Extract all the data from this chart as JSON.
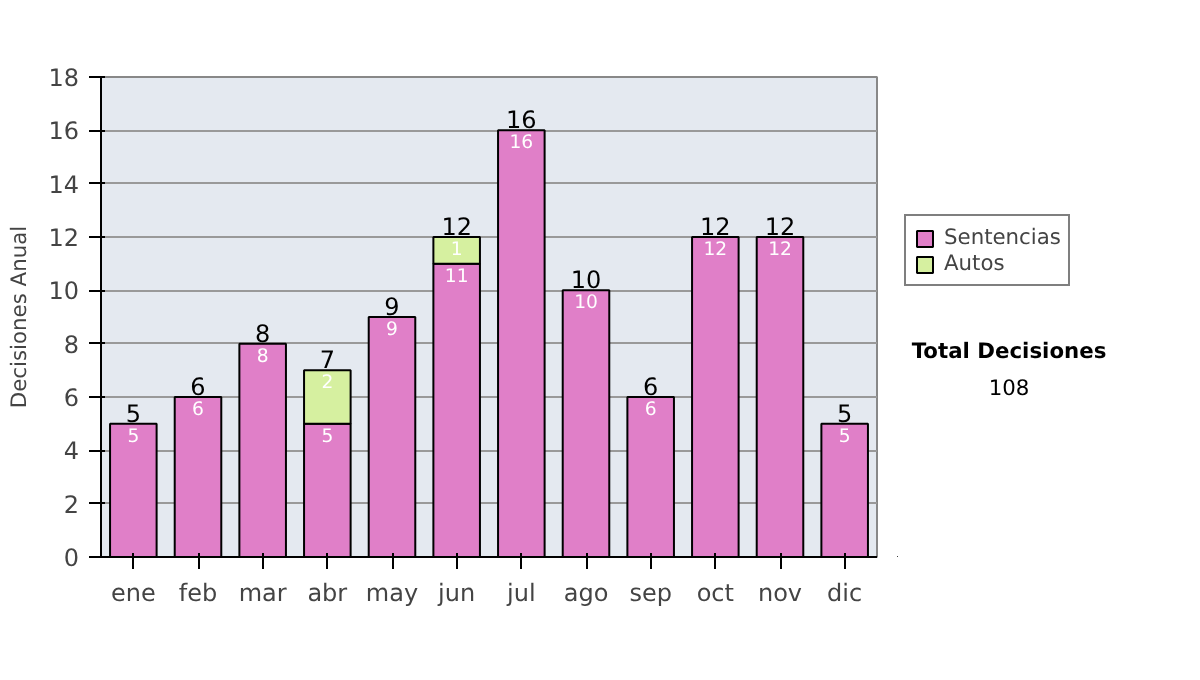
{
  "chart_data": {
    "type": "bar",
    "stacked": true,
    "ylabel": "Decisiones Anual",
    "categories": [
      "ene",
      "feb",
      "mar",
      "abr",
      "may",
      "jun",
      "jul",
      "ago",
      "sep",
      "oct",
      "nov",
      "dic"
    ],
    "series": [
      {
        "name": "Sentencias",
        "color": "#e07fc8",
        "values": [
          5,
          6,
          8,
          5,
          9,
          11,
          16,
          10,
          6,
          12,
          12,
          5
        ]
      },
      {
        "name": "Autos",
        "color": "#d6f0a0",
        "values": [
          null,
          null,
          null,
          2,
          null,
          1,
          null,
          null,
          null,
          null,
          null,
          null
        ]
      }
    ],
    "ylim": [
      0,
      18
    ],
    "yticks": [
      0,
      2,
      4,
      6,
      8,
      10,
      12,
      14,
      16,
      18
    ],
    "grid": "y",
    "legend": "right",
    "data_labels": true,
    "totals": [
      "5",
      "6",
      "8",
      "7",
      "9",
      "12",
      "16",
      "10",
      "6",
      "12",
      "12",
      "5"
    ],
    "annotations": [
      "Total Decisiones",
      "108"
    ]
  }
}
